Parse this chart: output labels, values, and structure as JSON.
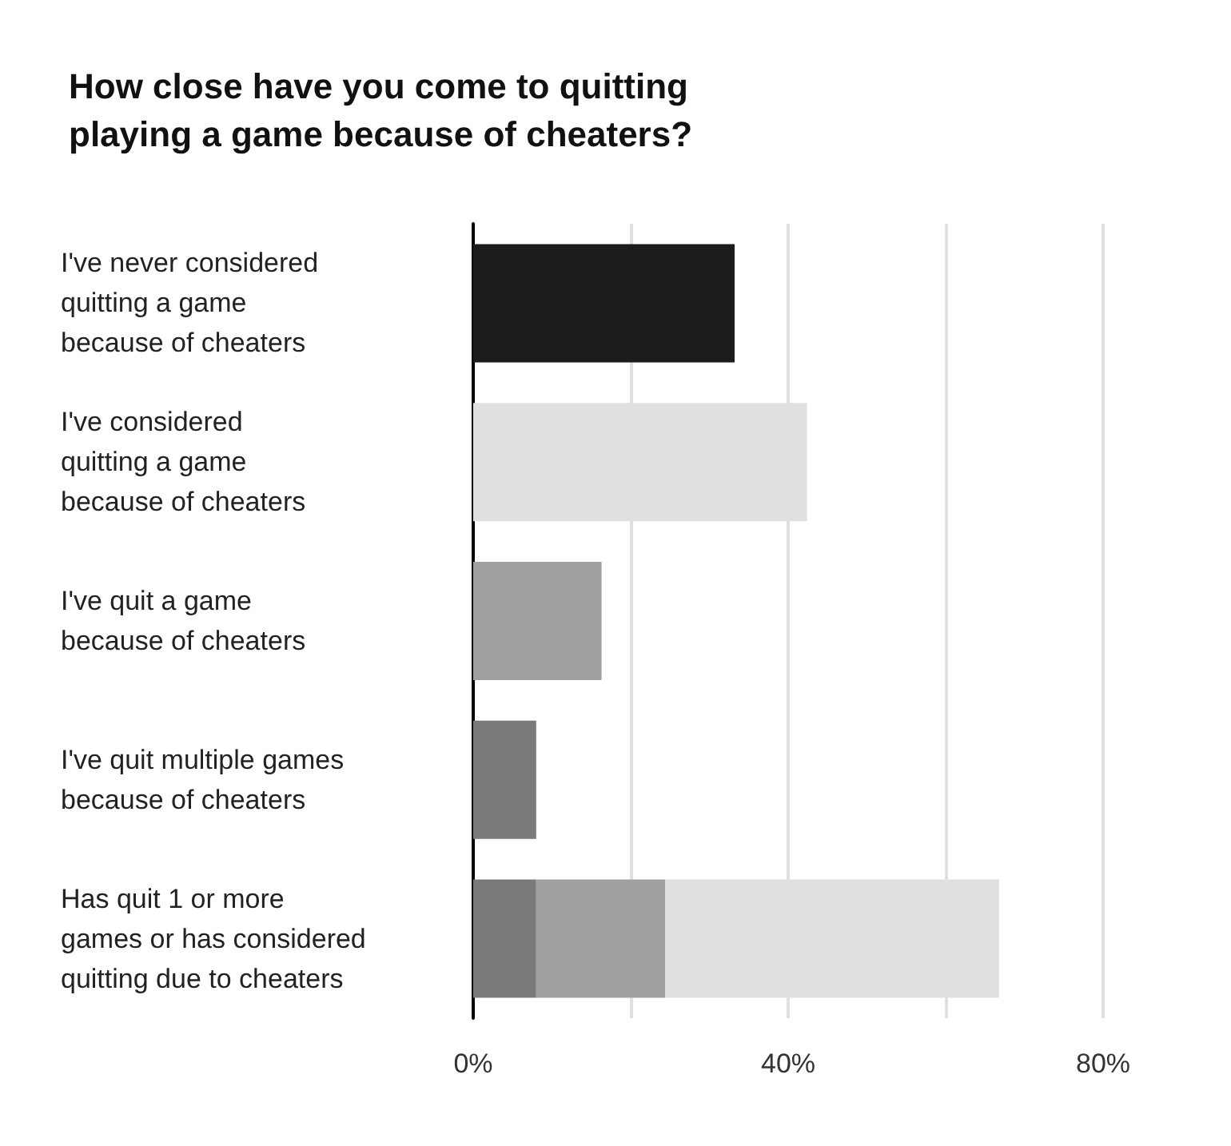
{
  "chart_data": {
    "type": "bar",
    "orientation": "horizontal",
    "stacked": true,
    "title": "How close have you come to quitting\nplaying a game because of cheaters?",
    "categories": [
      "I've never considered\nquitting a game\nbecause of cheaters",
      "I've considered\nquitting a game\nbecause of cheaters",
      "I've quit a game\nbecause of cheaters",
      "I've quit multiple games\nbecause of cheaters",
      "Has quit 1 or more\ngames or has considered\nquitting due to cheaters"
    ],
    "series": [
      {
        "color": "#7a7a7a",
        "values": [
          null,
          null,
          null,
          8,
          8
        ]
      },
      {
        "color": "#a0a0a0",
        "values": [
          null,
          null,
          16.3,
          null,
          16.4
        ]
      },
      {
        "color": "#e0e0e0",
        "values": [
          null,
          42.4,
          null,
          null,
          42.4
        ]
      },
      {
        "color": "#1c1c1c",
        "values": [
          33.2,
          null,
          null,
          null,
          null
        ]
      }
    ],
    "xlim": [
      0,
      80
    ],
    "xticks": [
      {
        "value": 0,
        "label": "0%"
      },
      {
        "value": 20,
        "label": null
      },
      {
        "value": 40,
        "label": "40%"
      },
      {
        "value": 60,
        "label": null
      },
      {
        "value": 80,
        "label": "80%"
      }
    ],
    "grid": "x"
  }
}
